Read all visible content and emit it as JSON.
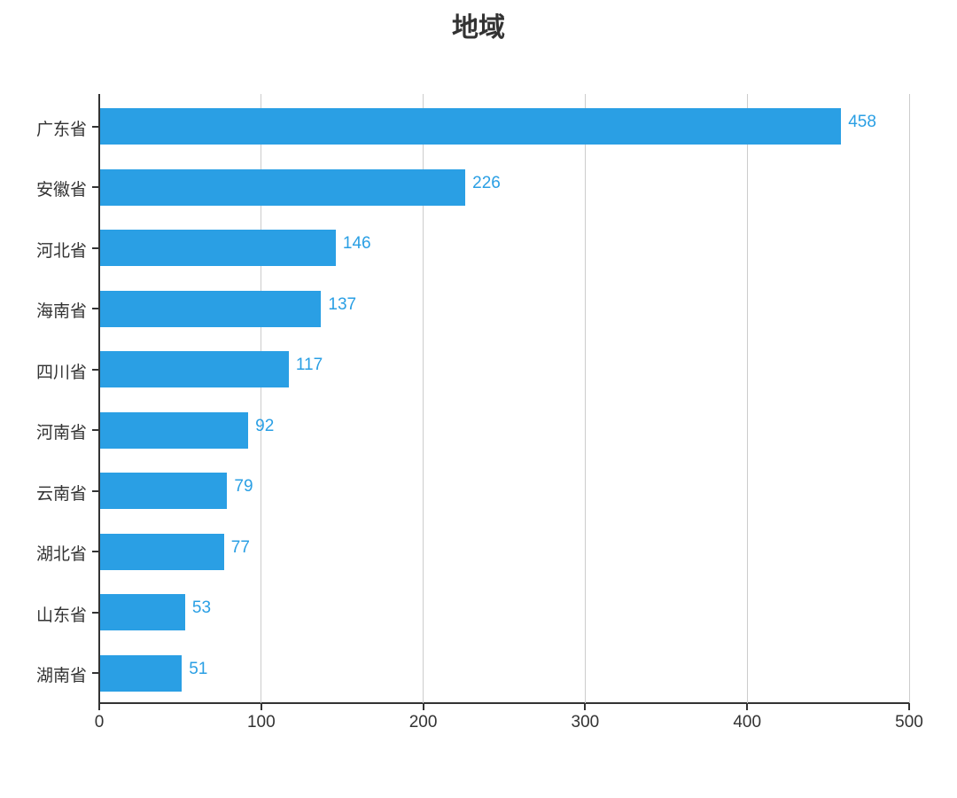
{
  "chart_data": {
    "type": "bar",
    "orientation": "horizontal",
    "title": "地域",
    "xlabel": "",
    "ylabel": "",
    "categories": [
      "广东省",
      "安徽省",
      "河北省",
      "海南省",
      "四川省",
      "河南省",
      "云南省",
      "湖北省",
      "山东省",
      "湖南省"
    ],
    "values": [
      458,
      226,
      146,
      137,
      117,
      92,
      79,
      77,
      53,
      51
    ],
    "xlim": [
      0,
      500
    ],
    "xticks": [
      "0",
      "100",
      "200",
      "300",
      "400",
      "500"
    ],
    "grid": "vertical",
    "legend": "none",
    "data_labels": true,
    "bar_color": "#2a9fe4"
  },
  "colors": {
    "bar": "#2a9fe4",
    "label": "#2a9fe4",
    "axis": "#333333",
    "grid": "#cccccc",
    "text": "#333333"
  }
}
